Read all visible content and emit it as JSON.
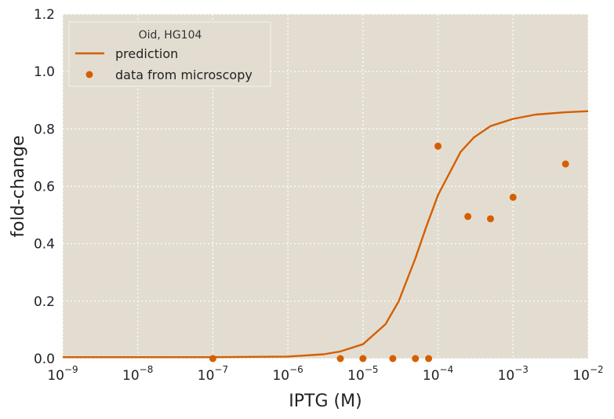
{
  "chart_data": {
    "type": "scatter",
    "xscale": "log",
    "xlim": [
      1e-09,
      0.01
    ],
    "ylim": [
      0,
      1.2
    ],
    "xlabel": "IPTG (M)",
    "ylabel": "fold-change",
    "x_ticks": [
      {
        "base": "10",
        "exp": "−9",
        "value": 1e-09
      },
      {
        "base": "10",
        "exp": "−8",
        "value": 1e-08
      },
      {
        "base": "10",
        "exp": "−7",
        "value": 1e-07
      },
      {
        "base": "10",
        "exp": "−6",
        "value": 1e-06
      },
      {
        "base": "10",
        "exp": "−5",
        "value": 1e-05
      },
      {
        "base": "10",
        "exp": "−4",
        "value": 0.0001
      },
      {
        "base": "10",
        "exp": "−3",
        "value": 0.001
      },
      {
        "base": "10",
        "exp": "−2",
        "value": 0.01
      }
    ],
    "y_ticks": [
      {
        "label": "0.0",
        "value": 0.0
      },
      {
        "label": "0.2",
        "value": 0.2
      },
      {
        "label": "0.4",
        "value": 0.4
      },
      {
        "label": "0.6",
        "value": 0.6
      },
      {
        "label": "0.8",
        "value": 0.8
      },
      {
        "label": "1.0",
        "value": 1.0
      },
      {
        "label": "1.2",
        "value": 1.2
      }
    ],
    "grid": true,
    "legend": {
      "title": "Oid, HG104",
      "placement": "top-left",
      "entries": [
        "prediction",
        "data from microscopy"
      ]
    },
    "series": [
      {
        "name": "prediction",
        "kind": "line",
        "color": "#d45f00",
        "x": [
          1e-09,
          1e-07,
          1e-06,
          3e-06,
          5e-06,
          1e-05,
          2e-05,
          3e-05,
          5e-05,
          7e-05,
          0.0001,
          0.0002,
          0.0003,
          0.0005,
          0.001,
          0.002,
          0.005,
          0.01
        ],
        "y": [
          0.005,
          0.005,
          0.007,
          0.015,
          0.025,
          0.05,
          0.12,
          0.2,
          0.35,
          0.46,
          0.57,
          0.72,
          0.77,
          0.81,
          0.835,
          0.85,
          0.858,
          0.862
        ]
      },
      {
        "name": "data from microscopy",
        "kind": "scatter",
        "color": "#d45f00",
        "x": [
          1e-07,
          5e-06,
          1e-05,
          2.5e-05,
          5e-05,
          7.5e-05,
          0.0001,
          0.00025,
          0.0005,
          0.001,
          0.005
        ],
        "y": [
          0.0,
          0.0,
          0.0,
          0.0,
          0.0,
          0.0,
          0.74,
          0.495,
          0.487,
          0.562,
          0.678
        ]
      }
    ],
    "colors": {
      "background": "#e3ddd1",
      "grid": "#ffffff",
      "accent": "#d45f00"
    }
  }
}
